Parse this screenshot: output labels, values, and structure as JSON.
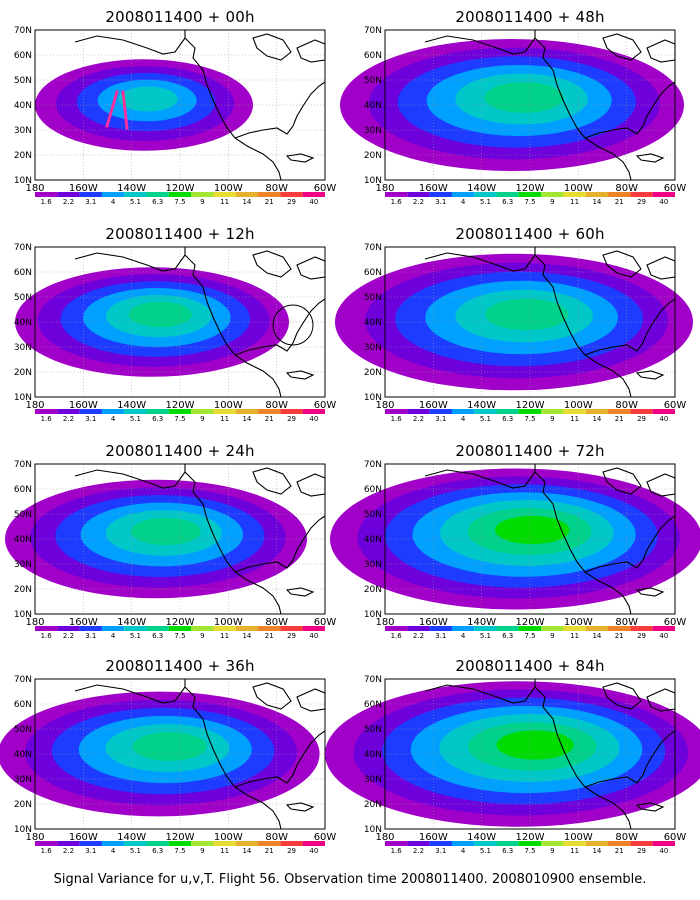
{
  "figure": {
    "caption": "Signal Variance for u,v,T. Flight 56. Observation time 2008011400. 2008010900 ensemble."
  },
  "axes": {
    "lat_labels": [
      "70N",
      "60N",
      "50N",
      "40N",
      "30N",
      "20N",
      "10N"
    ],
    "lon_labels": [
      "180",
      "160W",
      "140W",
      "120W",
      "100W",
      "80W",
      "60W"
    ]
  },
  "colorbar": {
    "levels": [
      "1.6",
      "2.2",
      "3.1",
      "4",
      "5.1",
      "6.3",
      "7.5",
      "9",
      "11",
      "14",
      "21",
      "29",
      "40"
    ],
    "colors": [
      "#a000c8",
      "#6e00dc",
      "#1e3cff",
      "#00a0ff",
      "#00c8c8",
      "#00d28c",
      "#00dc00",
      "#a0e632",
      "#e6dc32",
      "#e6af2d",
      "#f08228",
      "#fa3c3c",
      "#f00082"
    ]
  },
  "panels": [
    {
      "title": "2008011400 + 00h",
      "intensity": 0.45,
      "extent": 0.35,
      "track": true,
      "circle": false
    },
    {
      "title": "2008011400 + 48h",
      "intensity": 0.65,
      "extent": 0.8,
      "track": false,
      "circle": false
    },
    {
      "title": "2008011400 + 12h",
      "intensity": 0.55,
      "extent": 0.55,
      "track": false,
      "circle": true
    },
    {
      "title": "2008011400 + 60h",
      "intensity": 0.65,
      "extent": 0.85,
      "track": false,
      "circle": false
    },
    {
      "title": "2008011400 + 24h",
      "intensity": 0.62,
      "extent": 0.65,
      "track": false,
      "circle": false
    },
    {
      "title": "2008011400 + 72h",
      "intensity": 0.7,
      "extent": 0.9,
      "track": false,
      "circle": false
    },
    {
      "title": "2008011400 + 36h",
      "intensity": 0.65,
      "extent": 0.72,
      "track": false,
      "circle": false
    },
    {
      "title": "2008011400 + 84h",
      "intensity": 0.75,
      "extent": 0.95,
      "track": false,
      "circle": false
    }
  ]
}
